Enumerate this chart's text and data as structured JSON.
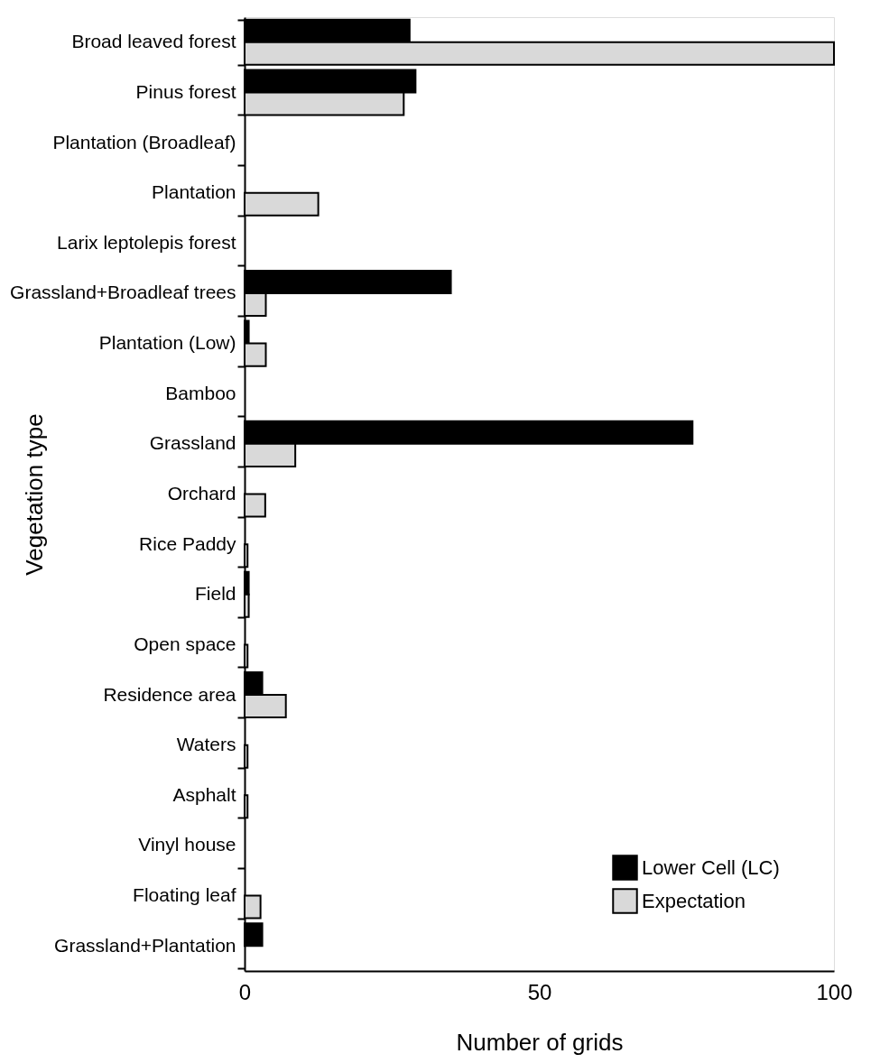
{
  "chart_data": {
    "type": "bar",
    "orientation": "horizontal",
    "xlabel": "Number of grids",
    "ylabel": "Vegetation type",
    "categories": [
      "Broad leaved forest",
      "Pinus forest",
      "Plantation (Broadleaf)",
      "Plantation",
      "Larix leptolepis forest",
      "Grassland+Broadleaf trees",
      "Plantation (Low)",
      "Bamboo",
      "Grassland",
      "Orchard",
      "Rice Paddy",
      "Field",
      "Open space",
      "Residence area",
      "Waters",
      "Asphalt",
      "Vinyl house",
      "Floating leaf",
      "Grassland+Plantation"
    ],
    "series": [
      {
        "name": "Lower Cell (LC)",
        "color": "#000000",
        "values": [
          28,
          29,
          null,
          null,
          null,
          35,
          0.7,
          null,
          76,
          null,
          null,
          0.7,
          null,
          3,
          null,
          null,
          null,
          null,
          3
        ]
      },
      {
        "name": "Expectation",
        "color": "#d9d9d9",
        "values": [
          100,
          27,
          null,
          12.5,
          null,
          3.6,
          3.6,
          null,
          8.6,
          3.5,
          0.5,
          0.7,
          0.5,
          7,
          0.5,
          0.5,
          null,
          2.7,
          null
        ]
      }
    ],
    "xlim": [
      0,
      100
    ],
    "xticks": [
      0,
      50,
      100
    ],
    "grid": false,
    "legend": "bottom right"
  }
}
